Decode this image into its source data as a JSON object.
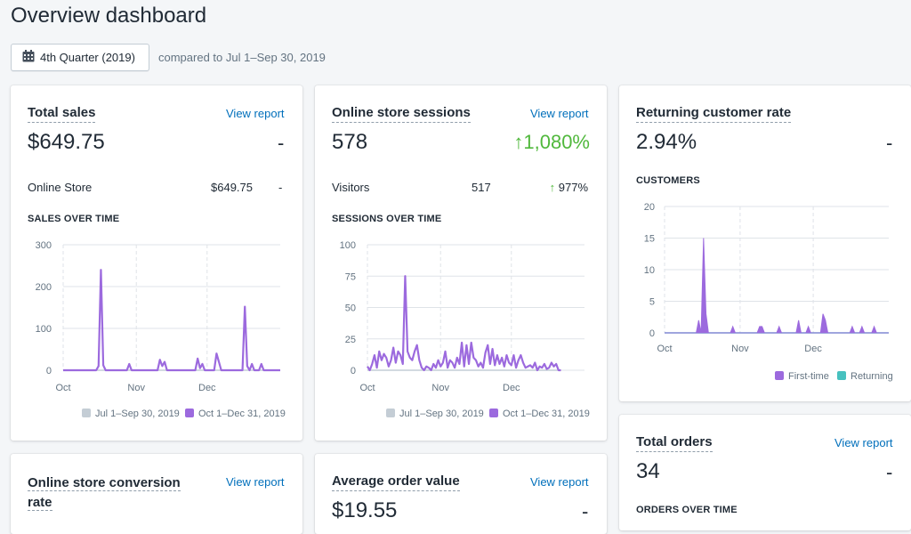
{
  "page": {
    "title": "Overview dashboard",
    "date_button_label": "4th Quarter (2019)",
    "compare_text": "compared to Jul 1–Sep 30, 2019"
  },
  "colors": {
    "accent_link": "#006fbb",
    "current_series": "#9c6ade",
    "previous_series": "#c4cdd5",
    "returning_series": "#47c1bf",
    "positive_change": "#50b83c"
  },
  "cards": {
    "total_sales": {
      "title": "Total sales",
      "view_report": "View report",
      "value": "$649.75",
      "change": "-",
      "row": {
        "label": "Online Store",
        "value": "$649.75",
        "change": "-"
      },
      "section_label": "SALES OVER TIME"
    },
    "sessions": {
      "title": "Online store sessions",
      "view_report": "View report",
      "value": "578",
      "change": "1,080%",
      "change_arrow": "↑",
      "row": {
        "label": "Visitors",
        "value": "517",
        "change": "977%",
        "change_arrow": "↑"
      },
      "section_label": "SESSIONS OVER TIME"
    },
    "returning": {
      "title": "Returning customer rate",
      "value": "2.94%",
      "change": "-",
      "section_label": "CUSTOMERS"
    },
    "total_orders": {
      "title": "Total orders",
      "view_report": "View report",
      "value": "34",
      "change": "-",
      "section_label": "ORDERS OVER TIME"
    },
    "conversion": {
      "title_line1": "Online store conversion",
      "title_line2": "rate",
      "view_report": "View report"
    },
    "aov": {
      "title": "Average order value",
      "view_report": "View report",
      "value": "$19.55",
      "change": "-"
    }
  },
  "chart_data": [
    {
      "type": "line",
      "section": "SALES OVER TIME",
      "ylim": [
        0,
        300
      ],
      "yticks": [
        "0",
        "100",
        "200",
        "300"
      ],
      "xtick_labels": [
        "Oct",
        "Nov",
        "Dec"
      ],
      "x_days": 92,
      "x_tick_days": [
        0,
        31,
        61
      ],
      "legend": [
        "Jul 1–Sep 30, 2019",
        "Oct 1–Dec 31, 2019"
      ],
      "series": [
        {
          "name": "Oct 1–Dec 31, 2019",
          "points": [
            [
              0,
              0
            ],
            [
              14,
              0
            ],
            [
              15,
              10
            ],
            [
              16,
              240
            ],
            [
              17,
              12
            ],
            [
              18,
              0
            ],
            [
              27,
              0
            ],
            [
              28,
              15
            ],
            [
              29,
              0
            ],
            [
              40,
              0
            ],
            [
              41,
              25
            ],
            [
              42,
              10
            ],
            [
              43,
              20
            ],
            [
              44,
              0
            ],
            [
              56,
              0
            ],
            [
              57,
              28
            ],
            [
              58,
              5
            ],
            [
              59,
              15
            ],
            [
              60,
              0
            ],
            [
              64,
              0
            ],
            [
              65,
              40
            ],
            [
              66,
              20
            ],
            [
              67,
              0
            ],
            [
              76,
              0
            ],
            [
              77,
              152
            ],
            [
              78,
              10
            ],
            [
              79,
              0
            ],
            [
              80,
              15
            ],
            [
              81,
              0
            ],
            [
              83,
              0
            ],
            [
              84,
              15
            ],
            [
              85,
              0
            ],
            [
              92,
              0
            ]
          ]
        },
        {
          "name": "Jul 1–Sep 30, 2019",
          "points": [
            [
              0,
              0
            ],
            [
              92,
              0
            ]
          ]
        }
      ]
    },
    {
      "type": "line",
      "section": "SESSIONS OVER TIME",
      "ylim": [
        0,
        100
      ],
      "yticks": [
        "0",
        "25",
        "50",
        "75",
        "100"
      ],
      "xtick_labels": [
        "Oct",
        "Nov",
        "Dec"
      ],
      "x_days": 92,
      "x_tick_days": [
        0,
        31,
        61
      ],
      "legend": [
        "Jul 1–Sep 30, 2019",
        "Oct 1–Dec 31, 2019"
      ],
      "series": [
        {
          "name": "Oct 1–Dec 31, 2019",
          "points": [
            [
              0,
              3
            ],
            [
              1,
              0
            ],
            [
              2,
              5
            ],
            [
              3,
              12
            ],
            [
              4,
              2
            ],
            [
              5,
              15
            ],
            [
              6,
              8
            ],
            [
              7,
              13
            ],
            [
              8,
              10
            ],
            [
              9,
              3
            ],
            [
              10,
              8
            ],
            [
              11,
              18
            ],
            [
              12,
              6
            ],
            [
              13,
              15
            ],
            [
              14,
              12
            ],
            [
              15,
              5
            ],
            [
              16,
              75
            ],
            [
              17,
              15
            ],
            [
              18,
              10
            ],
            [
              19,
              8
            ],
            [
              20,
              15
            ],
            [
              21,
              20
            ],
            [
              22,
              8
            ],
            [
              23,
              2
            ],
            [
              24,
              0
            ],
            [
              25,
              3
            ],
            [
              26,
              2
            ],
            [
              27,
              0
            ],
            [
              28,
              5
            ],
            [
              29,
              2
            ],
            [
              30,
              8
            ],
            [
              31,
              3
            ],
            [
              32,
              6
            ],
            [
              33,
              15
            ],
            [
              34,
              2
            ],
            [
              35,
              8
            ],
            [
              36,
              6
            ],
            [
              37,
              2
            ],
            [
              38,
              10
            ],
            [
              39,
              5
            ],
            [
              40,
              22
            ],
            [
              41,
              3
            ],
            [
              42,
              20
            ],
            [
              43,
              5
            ],
            [
              44,
              22
            ],
            [
              45,
              10
            ],
            [
              46,
              8
            ],
            [
              47,
              3
            ],
            [
              48,
              6
            ],
            [
              49,
              2
            ],
            [
              50,
              14
            ],
            [
              51,
              20
            ],
            [
              52,
              5
            ],
            [
              53,
              17
            ],
            [
              54,
              4
            ],
            [
              55,
              12
            ],
            [
              56,
              5
            ],
            [
              57,
              10
            ],
            [
              58,
              3
            ],
            [
              59,
              12
            ],
            [
              60,
              6
            ],
            [
              61,
              4
            ],
            [
              62,
              12
            ],
            [
              63,
              2
            ],
            [
              64,
              8
            ],
            [
              65,
              12
            ],
            [
              66,
              6
            ],
            [
              67,
              2
            ],
            [
              68,
              3
            ],
            [
              69,
              4
            ],
            [
              70,
              2
            ],
            [
              71,
              6
            ],
            [
              72,
              0
            ],
            [
              73,
              3
            ],
            [
              74,
              2
            ],
            [
              75,
              5
            ],
            [
              76,
              1
            ],
            [
              77,
              2
            ],
            [
              78,
              6
            ],
            [
              79,
              3
            ],
            [
              80,
              5
            ],
            [
              81,
              0
            ],
            [
              82,
              0
            ]
          ]
        },
        {
          "name": "Jul 1–Sep 30, 2019",
          "points": [
            [
              0,
              0
            ],
            [
              82,
              0
            ]
          ]
        }
      ]
    },
    {
      "type": "area",
      "section": "CUSTOMERS",
      "ylim": [
        0,
        20
      ],
      "yticks": [
        "0",
        "5",
        "10",
        "15",
        "20"
      ],
      "xtick_labels": [
        "Oct",
        "Nov",
        "Dec"
      ],
      "x_days": 92,
      "x_tick_days": [
        0,
        31,
        61
      ],
      "legend": [
        "First-time",
        "Returning"
      ],
      "series": [
        {
          "name": "First-time",
          "points": [
            [
              0,
              0
            ],
            [
              13,
              0
            ],
            [
              14,
              2
            ],
            [
              15,
              0
            ],
            [
              16,
              15
            ],
            [
              17,
              3
            ],
            [
              18,
              0
            ],
            [
              27,
              0
            ],
            [
              28,
              1
            ],
            [
              29,
              0
            ],
            [
              38,
              0
            ],
            [
              39,
              1
            ],
            [
              40,
              1
            ],
            [
              41,
              0
            ],
            [
              46,
              0
            ],
            [
              47,
              1
            ],
            [
              48,
              0
            ],
            [
              54,
              0
            ],
            [
              55,
              2
            ],
            [
              56,
              0
            ],
            [
              58,
              0
            ],
            [
              59,
              1
            ],
            [
              60,
              0
            ],
            [
              64,
              0
            ],
            [
              65,
              3
            ],
            [
              66,
              2
            ],
            [
              67,
              0
            ],
            [
              76,
              0
            ],
            [
              77,
              1
            ],
            [
              78,
              0
            ],
            [
              80,
              0
            ],
            [
              81,
              1
            ],
            [
              82,
              0
            ],
            [
              85,
              0
            ],
            [
              86,
              1
            ],
            [
              87,
              0
            ],
            [
              92,
              0
            ]
          ]
        },
        {
          "name": "Returning",
          "points": [
            [
              0,
              0
            ],
            [
              92,
              0
            ]
          ]
        }
      ]
    }
  ]
}
